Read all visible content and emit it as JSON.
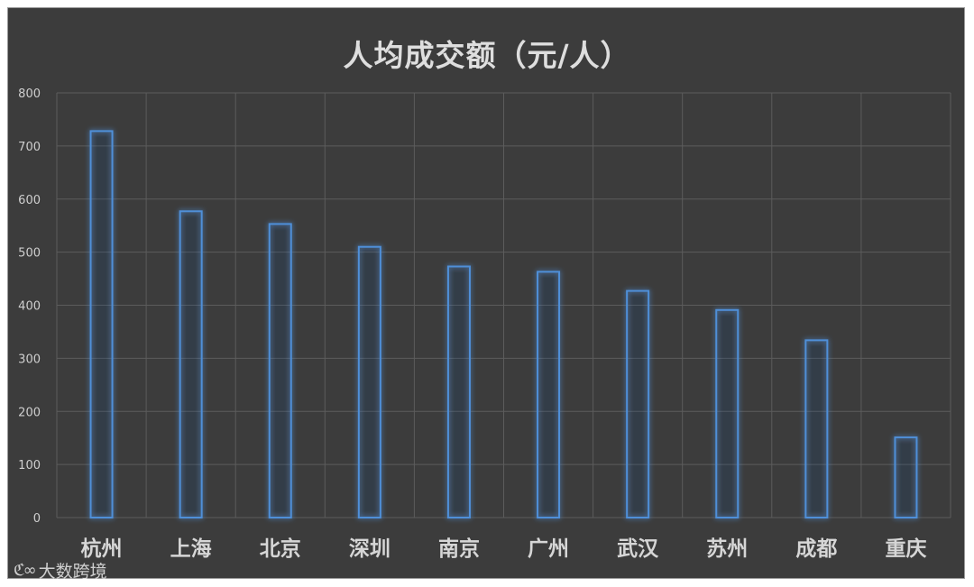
{
  "chart_data": {
    "type": "bar",
    "title": "人均成交额（元/人）",
    "categories": [
      "杭州",
      "上海",
      "北京",
      "深圳",
      "南京",
      "广州",
      "武汉",
      "苏州",
      "成都",
      "重庆"
    ],
    "values": [
      728,
      577,
      553,
      510,
      473,
      463,
      427,
      391,
      334,
      151
    ],
    "ylim": [
      0,
      800
    ],
    "yticks": [
      0,
      100,
      200,
      300,
      400,
      500,
      600,
      700,
      800
    ],
    "grid": true,
    "legend": "none",
    "colors": {
      "bar_stroke": "#4f8fd8",
      "bar_glow": "#2f6fc0",
      "grid": "#5c5c5c",
      "background": "#3c3c3c"
    }
  },
  "watermark": {
    "icon": "logo-icon",
    "text": "大数跨境"
  }
}
